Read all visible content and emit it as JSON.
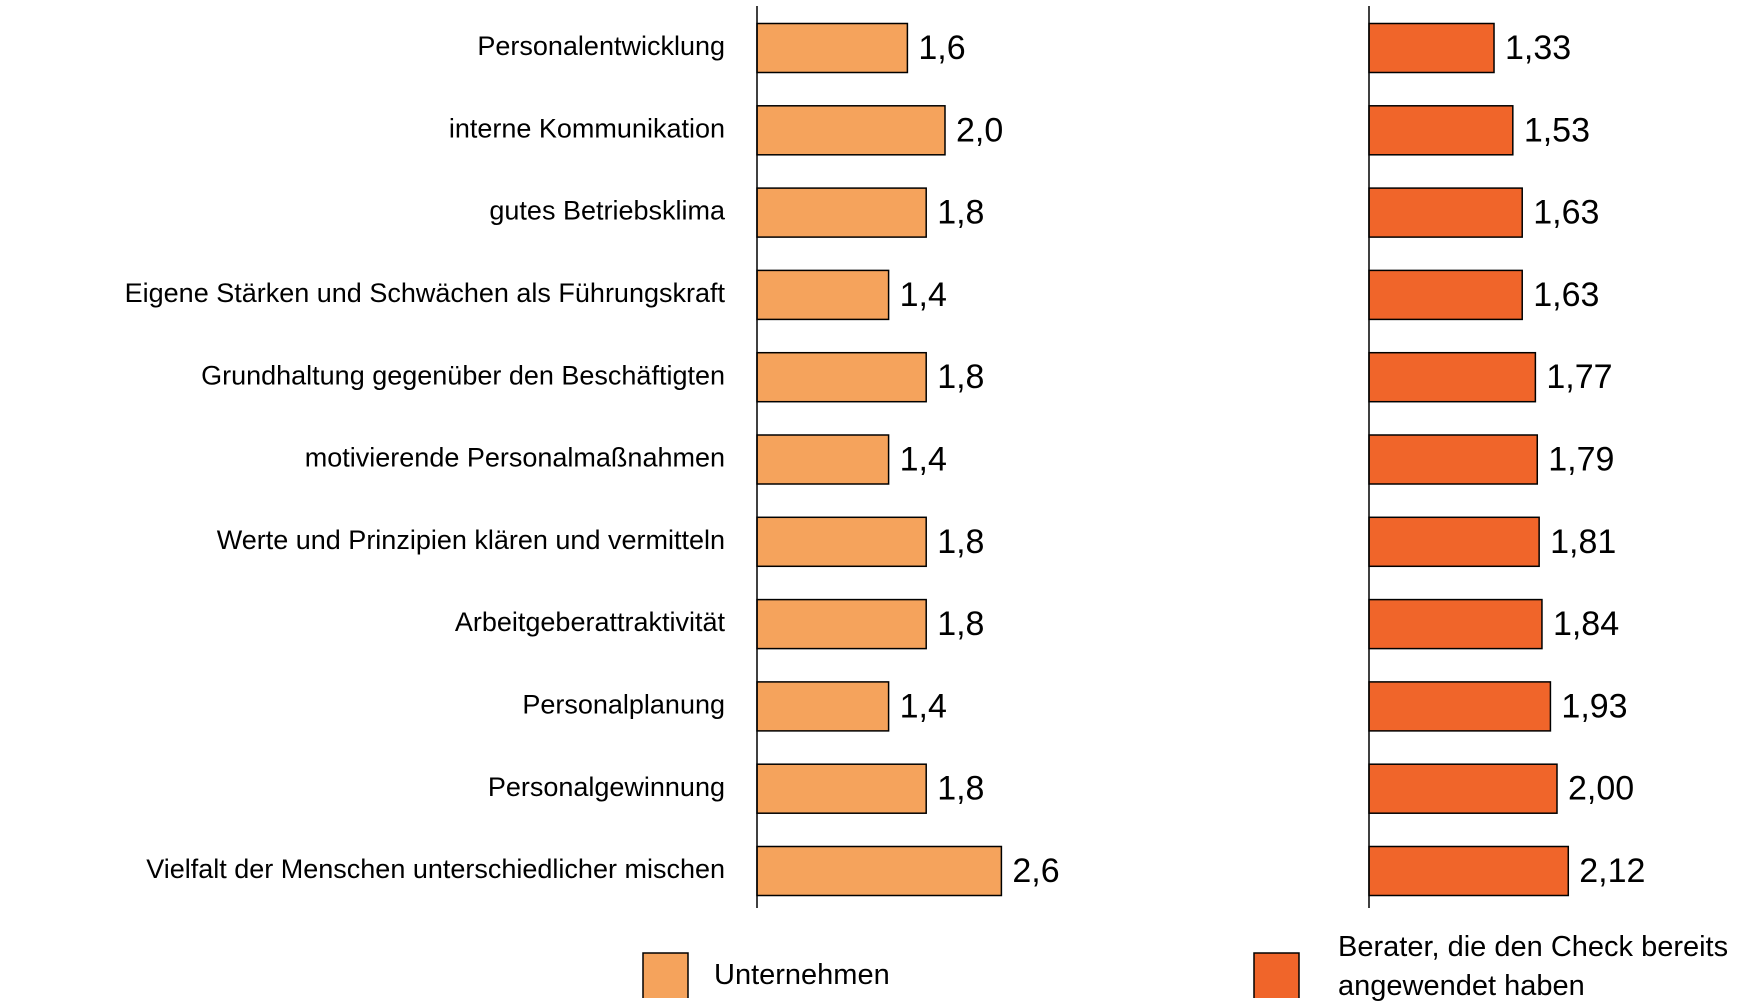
{
  "chart_data": [
    {
      "type": "hbar",
      "categories": [
        "Personalentwicklung",
        "interne Kommunikation",
        "gutes Betriebsklima",
        "Eigene Stärken und Schwächen als Führungskraft",
        "Grundhaltung gegenüber den Beschäftigten",
        "motivierende Personalmaßnahmen",
        "Werte und Prinzipien klären und vermitteln",
        "Arbeitgeberattraktivität",
        "Personalplanung",
        "Personalgewinnung",
        "Vielfalt der Menschen unterschiedlicher mischen"
      ],
      "series": [
        {
          "name": "Unternehmen",
          "color": "#f5a35c",
          "values": [
            1.6,
            2.0,
            1.8,
            1.4,
            1.8,
            1.4,
            1.8,
            1.8,
            1.4,
            1.8,
            2.6
          ],
          "value_labels": [
            "1,6",
            "2,0",
            "1,8",
            "1,4",
            "1,8",
            "1,4",
            "1,8",
            "1,8",
            "1,4",
            "1,8",
            "2,6"
          ]
        }
      ],
      "xlim": [
        0,
        3
      ]
    },
    {
      "type": "hbar",
      "series": [
        {
          "name": "Berater, die den Check bereits angewendet haben",
          "color": "#f0652a",
          "values": [
            1.33,
            1.53,
            1.63,
            1.63,
            1.77,
            1.79,
            1.81,
            1.84,
            1.93,
            2.0,
            2.12
          ],
          "value_labels": [
            "1,33",
            "1,53",
            "1,63",
            "1,63",
            "1,77",
            "1,79",
            "1,81",
            "1,84",
            "1,93",
            "2,00",
            "2,12"
          ]
        }
      ],
      "xlim": [
        0,
        3
      ]
    }
  ]
}
